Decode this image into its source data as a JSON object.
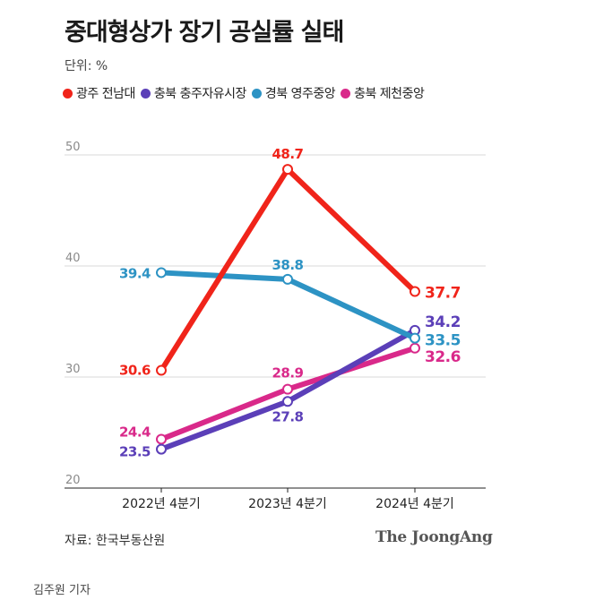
{
  "title": "중대형상가 장기 공실률 실태",
  "unit_label": "단위: %",
  "source": "자료: 한국부동산원",
  "brand": "The JoongAng",
  "reporter": "김주원 기자",
  "chart_data": {
    "type": "line",
    "title": "중대형상가 장기 공실률 실태",
    "ylim": [
      20,
      50
    ],
    "yticks": [
      "20",
      "30",
      "40",
      "50"
    ],
    "categories": [
      "2022년 4분기",
      "2023년 4분기",
      "2024년 4분기"
    ],
    "legend_position": "top-left",
    "grid": true,
    "series": [
      {
        "name": "광주 전남대",
        "color": "#f0241a",
        "values": [
          30.6,
          48.7,
          37.7
        ],
        "labels": [
          "30.6",
          "48.7",
          "37.7"
        ]
      },
      {
        "name": "충북 충주자유시장",
        "color": "#5b3fb8",
        "values": [
          23.5,
          27.8,
          34.2
        ],
        "labels": [
          "23.5",
          "27.8",
          "34.2"
        ]
      },
      {
        "name": "경북 영주중앙",
        "color": "#2d93c4",
        "values": [
          39.4,
          38.8,
          33.5
        ],
        "labels": [
          "39.4",
          "38.8",
          "33.5"
        ]
      },
      {
        "name": "충북 제천중앙",
        "color": "#d9298a",
        "values": [
          24.4,
          28.9,
          32.6
        ],
        "labels": [
          "24.4",
          "28.9",
          "32.6"
        ]
      }
    ]
  }
}
